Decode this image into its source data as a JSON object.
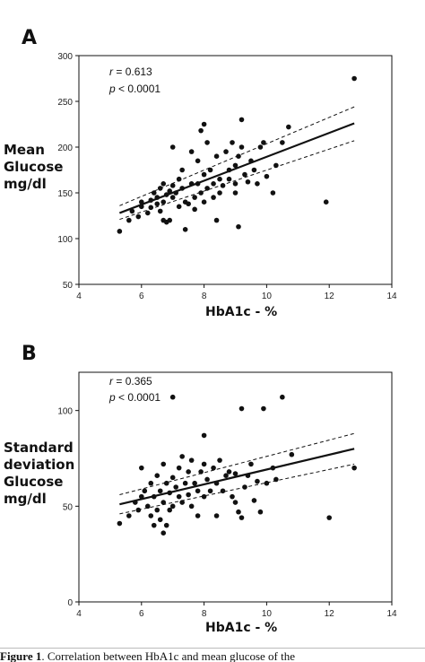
{
  "panels": [
    {
      "letter": "A",
      "ylabel_lines": [
        "Mean",
        "Glucose",
        "mg/dl"
      ],
      "xlabel": "HbA1c - %",
      "stat_r": "0.613",
      "stat_p": "< 0.0001"
    },
    {
      "letter": "B",
      "ylabel_lines": [
        "Standard",
        "deviation",
        "Glucose",
        "mg/dl"
      ],
      "xlabel": "HbA1c - %",
      "stat_r": "0.365",
      "stat_p": "< 0.0001"
    }
  ],
  "caption": {
    "figure_label": "Figure 1",
    "text": ". Correlation between HbA1c and mean glucose of the"
  },
  "chart_data": [
    {
      "type": "scatter",
      "xlabel": "HbA1c - %",
      "ylabel": "Mean Glucose mg/dl",
      "xlim": [
        4,
        14
      ],
      "ylim": [
        50,
        300
      ],
      "xticks": [
        4,
        6,
        8,
        10,
        12,
        14
      ],
      "yticks": [
        50,
        100,
        150,
        200,
        250,
        300
      ],
      "annotations": [
        "r = 0.613",
        "p < 0.0001"
      ],
      "regression": {
        "x": [
          5.3,
          12.8
        ],
        "y": [
          128,
          226
        ]
      },
      "ci_upper": {
        "x": [
          5.3,
          12.8
        ],
        "y": [
          136,
          244
        ]
      },
      "ci_lower": {
        "x": [
          5.3,
          12.8
        ],
        "y": [
          121,
          207
        ]
      },
      "points": [
        [
          5.3,
          108
        ],
        [
          5.6,
          120
        ],
        [
          5.7,
          130
        ],
        [
          5.9,
          124
        ],
        [
          6.0,
          140
        ],
        [
          6.0,
          135
        ],
        [
          6.2,
          128
        ],
        [
          6.3,
          142
        ],
        [
          6.3,
          134
        ],
        [
          6.4,
          150
        ],
        [
          6.5,
          145
        ],
        [
          6.5,
          138
        ],
        [
          6.6,
          130
        ],
        [
          6.6,
          155
        ],
        [
          6.7,
          120
        ],
        [
          6.7,
          140
        ],
        [
          6.7,
          160
        ],
        [
          6.8,
          118
        ],
        [
          6.8,
          148
        ],
        [
          6.9,
          152
        ],
        [
          6.9,
          120
        ],
        [
          7.0,
          200
        ],
        [
          7.0,
          158
        ],
        [
          7.0,
          145
        ],
        [
          7.1,
          150
        ],
        [
          7.2,
          135
        ],
        [
          7.2,
          165
        ],
        [
          7.3,
          175
        ],
        [
          7.3,
          155
        ],
        [
          7.4,
          110
        ],
        [
          7.4,
          140
        ],
        [
          7.5,
          138
        ],
        [
          7.6,
          195
        ],
        [
          7.6,
          160
        ],
        [
          7.7,
          145
        ],
        [
          7.7,
          132
        ],
        [
          7.8,
          185
        ],
        [
          7.8,
          160
        ],
        [
          7.9,
          150
        ],
        [
          7.9,
          218
        ],
        [
          8.0,
          225
        ],
        [
          8.0,
          170
        ],
        [
          8.0,
          140
        ],
        [
          8.1,
          205
        ],
        [
          8.1,
          155
        ],
        [
          8.2,
          175
        ],
        [
          8.3,
          160
        ],
        [
          8.3,
          145
        ],
        [
          8.4,
          190
        ],
        [
          8.4,
          120
        ],
        [
          8.5,
          165
        ],
        [
          8.5,
          150
        ],
        [
          8.6,
          158
        ],
        [
          8.7,
          195
        ],
        [
          8.8,
          175
        ],
        [
          8.8,
          165
        ],
        [
          8.9,
          205
        ],
        [
          9.0,
          180
        ],
        [
          9.0,
          160
        ],
        [
          9.0,
          150
        ],
        [
          9.1,
          190
        ],
        [
          9.1,
          113
        ],
        [
          9.2,
          230
        ],
        [
          9.2,
          200
        ],
        [
          9.3,
          170
        ],
        [
          9.4,
          162
        ],
        [
          9.5,
          185
        ],
        [
          9.6,
          175
        ],
        [
          9.7,
          160
        ],
        [
          9.8,
          200
        ],
        [
          9.9,
          205
        ],
        [
          10.0,
          168
        ],
        [
          10.2,
          150
        ],
        [
          10.3,
          180
        ],
        [
          10.5,
          205
        ],
        [
          10.7,
          222
        ],
        [
          11.9,
          140
        ],
        [
          12.8,
          275
        ]
      ]
    },
    {
      "type": "scatter",
      "xlabel": "HbA1c - %",
      "ylabel": "Standard deviation Glucose mg/dl",
      "xlim": [
        4,
        14
      ],
      "ylim": [
        0,
        120
      ],
      "xticks": [
        4,
        6,
        8,
        10,
        12,
        14
      ],
      "yticks": [
        0,
        50,
        100
      ],
      "annotations": [
        "r = 0.365",
        "p < 0.0001"
      ],
      "regression": {
        "x": [
          5.3,
          12.8
        ],
        "y": [
          51,
          80
        ]
      },
      "ci_upper": {
        "x": [
          5.3,
          12.8
        ],
        "y": [
          56,
          88
        ]
      },
      "ci_lower": {
        "x": [
          5.3,
          12.8
        ],
        "y": [
          46,
          72
        ]
      },
      "points": [
        [
          5.3,
          41
        ],
        [
          5.6,
          45
        ],
        [
          5.8,
          52
        ],
        [
          5.9,
          48
        ],
        [
          6.0,
          55
        ],
        [
          6.0,
          70
        ],
        [
          6.1,
          58
        ],
        [
          6.2,
          50
        ],
        [
          6.3,
          45
        ],
        [
          6.3,
          62
        ],
        [
          6.4,
          40
        ],
        [
          6.4,
          55
        ],
        [
          6.5,
          48
        ],
        [
          6.5,
          66
        ],
        [
          6.6,
          43
        ],
        [
          6.6,
          58
        ],
        [
          6.7,
          36
        ],
        [
          6.7,
          52
        ],
        [
          6.7,
          72
        ],
        [
          6.8,
          40
        ],
        [
          6.8,
          62
        ],
        [
          6.9,
          57
        ],
        [
          6.9,
          48
        ],
        [
          7.0,
          107
        ],
        [
          7.0,
          65
        ],
        [
          7.0,
          50
        ],
        [
          7.1,
          60
        ],
        [
          7.2,
          55
        ],
        [
          7.2,
          70
        ],
        [
          7.3,
          76
        ],
        [
          7.3,
          52
        ],
        [
          7.4,
          62
        ],
        [
          7.5,
          68
        ],
        [
          7.5,
          56
        ],
        [
          7.6,
          50
        ],
        [
          7.6,
          74
        ],
        [
          7.7,
          62
        ],
        [
          7.8,
          45
        ],
        [
          7.8,
          58
        ],
        [
          7.9,
          68
        ],
        [
          8.0,
          87
        ],
        [
          8.0,
          72
        ],
        [
          8.0,
          55
        ],
        [
          8.1,
          64
        ],
        [
          8.2,
          58
        ],
        [
          8.3,
          70
        ],
        [
          8.4,
          45
        ],
        [
          8.4,
          62
        ],
        [
          8.5,
          74
        ],
        [
          8.6,
          58
        ],
        [
          8.7,
          66
        ],
        [
          8.8,
          68
        ],
        [
          8.9,
          55
        ],
        [
          9.0,
          52
        ],
        [
          9.0,
          67
        ],
        [
          9.1,
          47
        ],
        [
          9.2,
          101
        ],
        [
          9.2,
          44
        ],
        [
          9.3,
          60
        ],
        [
          9.4,
          66
        ],
        [
          9.5,
          72
        ],
        [
          9.6,
          53
        ],
        [
          9.7,
          63
        ],
        [
          9.8,
          47
        ],
        [
          9.9,
          101
        ],
        [
          10.0,
          62
        ],
        [
          10.2,
          70
        ],
        [
          10.3,
          64
        ],
        [
          10.5,
          107
        ],
        [
          10.8,
          77
        ],
        [
          12.0,
          44
        ],
        [
          12.8,
          70
        ]
      ]
    }
  ]
}
